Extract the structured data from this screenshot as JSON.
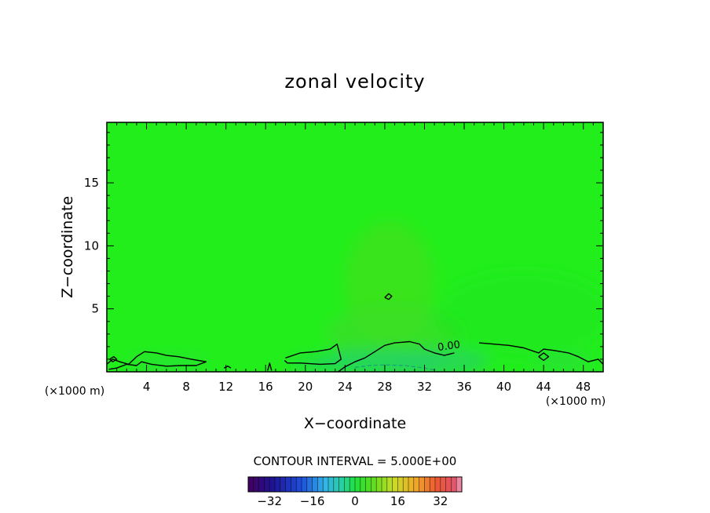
{
  "chart_data": {
    "type": "contour",
    "title": "zonal velocity",
    "xlabel": "X−coordinate",
    "ylabel": "Z−coordinate",
    "x_unit": "(×1000 m)",
    "y_unit": "(×1000 m)",
    "xlim": [
      0,
      50
    ],
    "ylim": [
      0,
      19.8
    ],
    "x_ticks": [
      4,
      8,
      12,
      16,
      20,
      24,
      28,
      32,
      36,
      40,
      44,
      48
    ],
    "x_tick_labels": [
      "4",
      "8",
      "12",
      "16",
      "20",
      "24",
      "28",
      "32",
      "36",
      "40",
      "44",
      "48"
    ],
    "y_ticks": [
      5,
      10,
      15
    ],
    "y_tick_labels": [
      "5",
      "10",
      "15"
    ],
    "background_value": 0,
    "contour_label": "0.00",
    "contour_label_at": [
      34.5,
      1.8
    ],
    "contour_interval_text": "CONTOUR INTERVAL = 5.000E+00",
    "colorbar": {
      "min": -40,
      "max": 40,
      "step": 2,
      "tick_values": [
        -32,
        -16,
        0,
        16,
        32
      ],
      "tick_labels": [
        "−32",
        "−16",
        "0",
        "16",
        "32"
      ]
    },
    "zero_contours": [
      [
        [
          0,
          0.6
        ],
        [
          0.6,
          1.0
        ],
        [
          1.3,
          0.8
        ],
        [
          2.2,
          0.6
        ],
        [
          3.0,
          1.2
        ],
        [
          3.8,
          1.6
        ],
        [
          5.0,
          1.5
        ],
        [
          6.0,
          1.3
        ],
        [
          7.2,
          1.2
        ],
        [
          8.5,
          1.0
        ],
        [
          10.0,
          0.8
        ],
        [
          9.0,
          0.5
        ],
        [
          7.5,
          0.5
        ],
        [
          6.0,
          0.45
        ],
        [
          4.5,
          0.6
        ],
        [
          3.5,
          0.8
        ],
        [
          3.0,
          0.5
        ],
        [
          2.0,
          0.6
        ],
        [
          1.0,
          0.3
        ],
        [
          0.2,
          0.2
        ]
      ],
      [
        [
          18.0,
          1.1
        ],
        [
          19.5,
          1.5
        ],
        [
          21.0,
          1.6
        ],
        [
          22.5,
          1.8
        ],
        [
          23.2,
          2.2
        ],
        [
          23.4,
          1.6
        ],
        [
          23.6,
          1.0
        ],
        [
          23.0,
          0.65
        ],
        [
          21.5,
          0.6
        ],
        [
          19.5,
          0.7
        ],
        [
          18.2,
          0.7
        ],
        [
          17.9,
          0.9
        ]
      ],
      [
        [
          23.3,
          0.0
        ],
        [
          24.0,
          0.4
        ],
        [
          25.0,
          0.8
        ],
        [
          26.0,
          1.1
        ],
        [
          27.0,
          1.6
        ],
        [
          28.0,
          2.1
        ],
        [
          29.0,
          2.3
        ],
        [
          30.5,
          2.4
        ],
        [
          31.5,
          2.2
        ],
        [
          32.0,
          1.8
        ],
        [
          33.0,
          1.5
        ],
        [
          34.0,
          1.3
        ],
        [
          35.0,
          1.5
        ]
      ],
      [
        [
          37.5,
          2.3
        ],
        [
          39.0,
          2.2
        ],
        [
          40.5,
          2.1
        ],
        [
          42.0,
          1.9
        ],
        [
          43.5,
          1.5
        ],
        [
          44.0,
          1.8
        ],
        [
          45.0,
          1.7
        ],
        [
          46.5,
          1.5
        ],
        [
          47.5,
          1.2
        ],
        [
          48.5,
          0.8
        ],
        [
          49.5,
          1.0
        ],
        [
          50.0,
          0.6
        ]
      ],
      [
        [
          28.0,
          5.9
        ],
        [
          28.4,
          6.2
        ],
        [
          28.7,
          6.0
        ],
        [
          28.4,
          5.75
        ],
        [
          28.0,
          5.9
        ]
      ],
      [
        [
          43.5,
          1.2
        ],
        [
          44.0,
          1.5
        ],
        [
          44.5,
          1.2
        ],
        [
          44.0,
          0.9
        ],
        [
          43.5,
          1.2
        ]
      ],
      [
        [
          0.3,
          1.0
        ],
        [
          0.7,
          1.2
        ],
        [
          1.0,
          1.0
        ],
        [
          0.6,
          0.8
        ],
        [
          0.3,
          1.0
        ]
      ],
      [
        [
          11.8,
          0.3
        ],
        [
          12.2,
          0.45
        ],
        [
          12.5,
          0.3
        ]
      ],
      [
        [
          16.2,
          0.1
        ],
        [
          16.4,
          0.7
        ],
        [
          16.6,
          0.1
        ]
      ]
    ],
    "negative_contours": [
      [
        [
          25.0,
          0.35
        ],
        [
          26.5,
          0.5
        ],
        [
          28.0,
          0.55
        ],
        [
          30.0,
          0.5
        ],
        [
          32.0,
          0.3
        ],
        [
          33.0,
          0.15
        ]
      ]
    ],
    "anomaly_patches": [
      {
        "cx": 28.5,
        "cz": 7.0,
        "rx": 4.5,
        "rz": 5.0,
        "color": "#44e01f",
        "opacity": 0.7
      },
      {
        "cx": 29.0,
        "cz": 3.0,
        "rx": 7.0,
        "rz": 2.2,
        "color": "#3bdc28",
        "opacity": 0.7
      },
      {
        "cx": 27.5,
        "cz": 0.8,
        "rx": 6.5,
        "rz": 1.0,
        "color": "#27d364",
        "opacity": 0.85
      },
      {
        "cx": 33.5,
        "cz": 0.8,
        "rx": 5.0,
        "rz": 1.0,
        "color": "#25d266",
        "opacity": 0.75
      },
      {
        "cx": 21.0,
        "cz": 0.6,
        "rx": 2.5,
        "rz": 0.5,
        "color": "#25d266",
        "opacity": 0.7
      },
      {
        "cx": 42.0,
        "cz": 4.5,
        "rx": 9.0,
        "rz": 3.5,
        "color": "#1ee81e",
        "opacity": 0.6
      },
      {
        "cx": 6.0,
        "cz": 0.7,
        "rx": 4.0,
        "rz": 0.5,
        "color": "#2bd94a",
        "opacity": 0.6
      },
      {
        "cx": 46.0,
        "cz": 0.8,
        "rx": 3.0,
        "rz": 0.6,
        "color": "#2bd94a",
        "opacity": 0.6
      }
    ]
  }
}
